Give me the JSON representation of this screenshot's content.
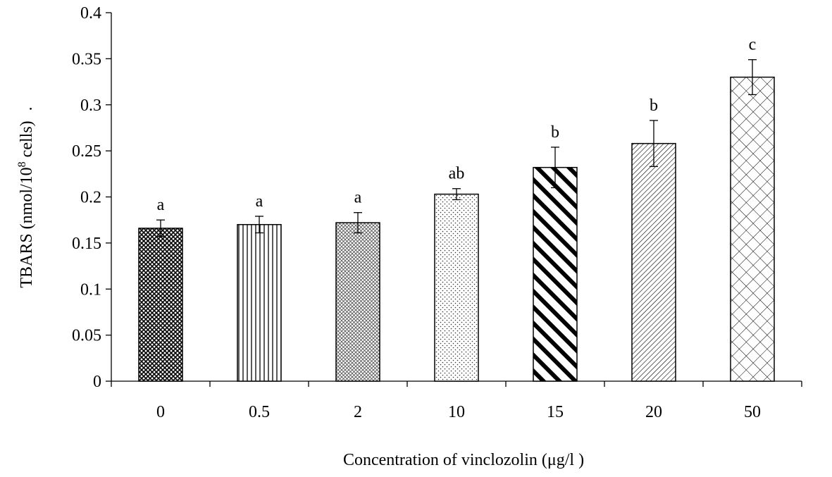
{
  "chart_data": {
    "type": "bar",
    "xlabel": "Concentration of vinclozolin (μg/l )",
    "ylabel_prefix": "TBARS (nmol/10",
    "ylabel_superscript": "8",
    "ylabel_suffix": " cells)",
    "ylabel_trailing": ".",
    "ylim": [
      0,
      0.4
    ],
    "yticks": [
      {
        "value": 0,
        "label": "0"
      },
      {
        "value": 0.05,
        "label": "0.05"
      },
      {
        "value": 0.1,
        "label": "0.1"
      },
      {
        "value": 0.15,
        "label": "0.15"
      },
      {
        "value": 0.2,
        "label": "0.2"
      },
      {
        "value": 0.25,
        "label": "0.25"
      },
      {
        "value": 0.3,
        "label": "0.3"
      },
      {
        "value": 0.35,
        "label": "0.35"
      },
      {
        "value": 0.4,
        "label": "0.4"
      }
    ],
    "categories": [
      "0",
      "0.5",
      "2",
      "10",
      "15",
      "20",
      "50"
    ],
    "values": [
      0.166,
      0.17,
      0.172,
      0.203,
      0.232,
      0.258,
      0.33
    ],
    "errors": [
      0.009,
      0.009,
      0.011,
      0.006,
      0.022,
      0.025,
      0.019
    ],
    "significance_labels": [
      "a",
      "a",
      "a",
      "ab",
      "b",
      "b",
      "c"
    ],
    "bar_patterns": [
      "dense-checker",
      "vertical-lines",
      "fine-checker",
      "dots",
      "thick-diagonal",
      "diagonal-lines",
      "crosshatch"
    ],
    "grid": false,
    "legend": "none"
  }
}
